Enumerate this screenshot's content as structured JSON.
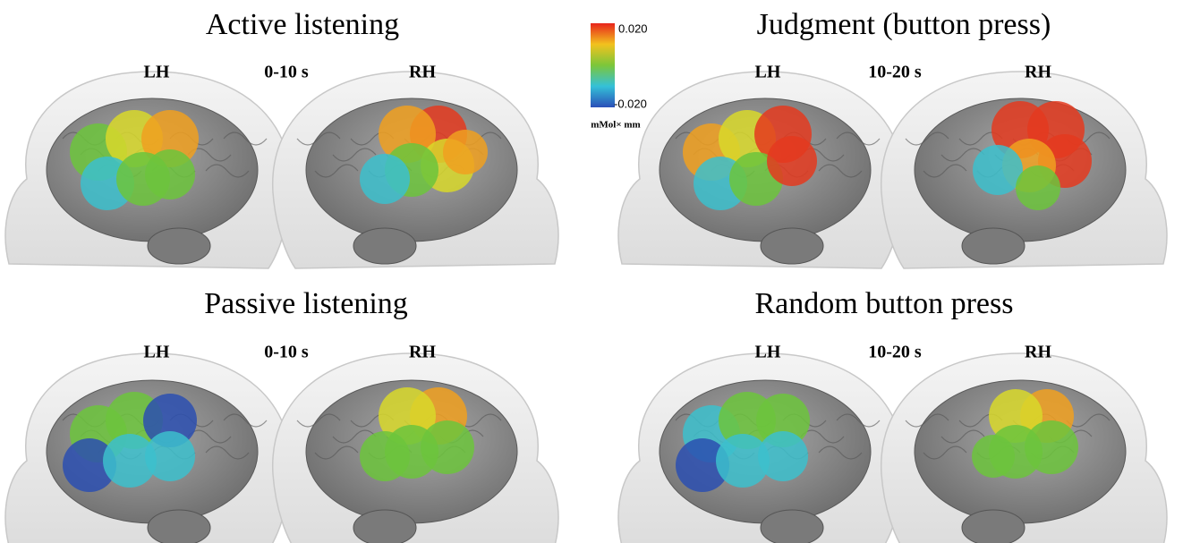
{
  "panels": [
    {
      "title": "Active listening",
      "left": "LH",
      "time": "0-10 s",
      "right": "RH"
    },
    {
      "title": "Judgment (button press)",
      "left": "LH",
      "time": "10-20 s",
      "right": "RH"
    },
    {
      "title": "Passive listening",
      "left": "LH",
      "time": "0-10 s",
      "right": "RH"
    },
    {
      "title": "Random button press",
      "left": "LH",
      "time": "10-20 s",
      "right": "RH"
    }
  ],
  "colorbar": {
    "max": "0.020",
    "min": "-0.020",
    "unit": "mMol× mm"
  }
}
